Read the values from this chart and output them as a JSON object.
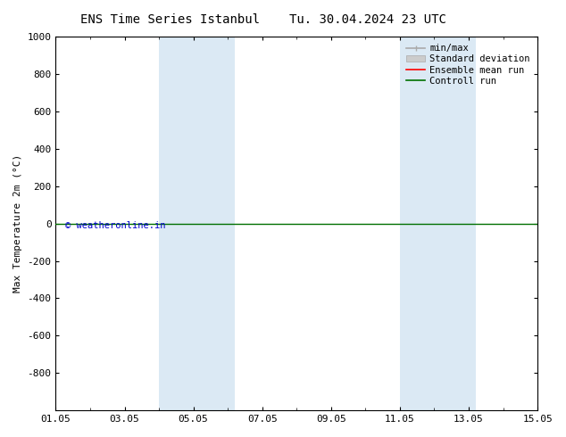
{
  "title_left": "ENS Time Series Istanbul",
  "title_right": "Tu. 30.04.2024 23 UTC",
  "ylabel": "Max Temperature 2m (°C)",
  "ylim_top": -1000,
  "ylim_bottom": 1000,
  "yticks": [
    -800,
    -600,
    -400,
    -200,
    0,
    200,
    400,
    600,
    800,
    1000
  ],
  "xtick_labels": [
    "01.05",
    "03.05",
    "05.05",
    "07.05",
    "09.05",
    "11.05",
    "13.05",
    "15.05"
  ],
  "xtick_positions": [
    0,
    2,
    4,
    6,
    8,
    10,
    12,
    14
  ],
  "xlim": [
    0,
    14
  ],
  "shaded_bands": [
    {
      "x_start": 3.0,
      "x_end": 3.8
    },
    {
      "x_start": 3.8,
      "x_end": 5.2
    },
    {
      "x_start": 10.0,
      "x_end": 10.8
    },
    {
      "x_start": 10.8,
      "x_end": 12.2
    }
  ],
  "green_line_y": 0,
  "green_line_color": "#007000",
  "red_line_color": "#ff0000",
  "copyright_text": "© weatheronline.in",
  "copyright_color": "#0000cc",
  "legend_entries": [
    "min/max",
    "Standard deviation",
    "Ensemble mean run",
    "Controll run"
  ],
  "background_color": "#ffffff",
  "plot_background": "#ffffff",
  "band_color": "#cce0f0",
  "band_alpha": 0.7,
  "title_fontsize": 10,
  "axis_label_fontsize": 8,
  "tick_fontsize": 8,
  "legend_fontsize": 7.5
}
